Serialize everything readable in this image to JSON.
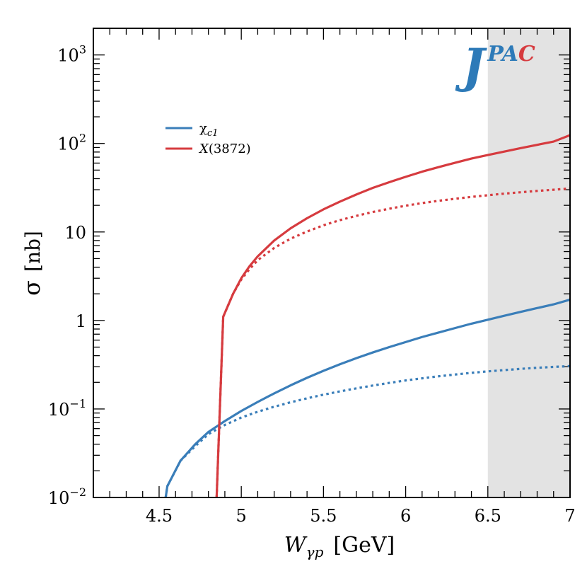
{
  "chart_data": {
    "type": "line",
    "x_scale": "linear",
    "y_scale": "log",
    "xlim": [
      4.1,
      7.0
    ],
    "ylim": [
      0.01,
      2000
    ],
    "x_ticks": [
      {
        "value": 4.5,
        "label": "4.5"
      },
      {
        "value": 5.0,
        "label": "5"
      },
      {
        "value": 5.5,
        "label": "5.5"
      },
      {
        "value": 6.0,
        "label": "6"
      },
      {
        "value": 6.5,
        "label": "6.5"
      },
      {
        "value": 7.0,
        "label": "7"
      }
    ],
    "y_ticks": [
      {
        "value": 0.01,
        "base": "10",
        "exp": "−2",
        "label": ""
      },
      {
        "value": 0.1,
        "base": "10",
        "exp": "−1",
        "label": ""
      },
      {
        "value": 1,
        "base": "",
        "exp": "",
        "label": "1"
      },
      {
        "value": 10,
        "base": "",
        "exp": "",
        "label": "10"
      },
      {
        "value": 100,
        "base": "10",
        "exp": "2",
        "label": ""
      },
      {
        "value": 1000,
        "base": "10",
        "exp": "3",
        "label": ""
      }
    ],
    "xlabel": {
      "symbol": "W",
      "subscript": "γp",
      "unit": "[GeV]"
    },
    "ylabel": {
      "symbol": "σ",
      "unit": "[nb]"
    },
    "shaded_region": {
      "x_from": 6.5,
      "x_to": 7.0,
      "color": "#e3e3e3"
    },
    "series": [
      {
        "name": "χc1",
        "legend_main": "χ",
        "legend_sub": "c1",
        "color": "#3a7eb9",
        "style": "solid",
        "x": [
          4.54,
          4.55,
          4.63,
          4.72,
          4.8,
          4.9,
          5.0,
          5.1,
          5.2,
          5.3,
          5.4,
          5.5,
          5.6,
          5.7,
          5.8,
          5.9,
          6.0,
          6.1,
          6.2,
          6.3,
          6.4,
          6.5,
          6.6,
          6.7,
          6.8,
          6.9,
          7.0
        ],
        "y": [
          0.01,
          0.0134,
          0.026,
          0.04,
          0.055,
          0.073,
          0.095,
          0.12,
          0.15,
          0.185,
          0.225,
          0.27,
          0.32,
          0.375,
          0.435,
          0.5,
          0.57,
          0.65,
          0.73,
          0.82,
          0.92,
          1.02,
          1.13,
          1.25,
          1.38,
          1.52,
          1.72
        ]
      },
      {
        "name": "χc1 (dotted)",
        "legend_main": "",
        "legend_sub": "",
        "color": "#3a7eb9",
        "style": "dotted",
        "x": [
          4.54,
          4.55,
          4.63,
          4.72,
          4.8,
          4.9,
          5.0,
          5.1,
          5.2,
          5.3,
          5.4,
          5.5,
          5.6,
          5.7,
          5.8,
          5.9,
          6.0,
          6.1,
          6.2,
          6.3,
          6.4,
          6.5,
          6.6,
          6.7,
          6.8,
          6.9,
          7.0
        ],
        "y": [
          0.01,
          0.0134,
          0.026,
          0.038,
          0.052,
          0.066,
          0.08,
          0.093,
          0.106,
          0.119,
          0.132,
          0.145,
          0.158,
          0.171,
          0.184,
          0.197,
          0.21,
          0.222,
          0.234,
          0.245,
          0.256,
          0.266,
          0.275,
          0.284,
          0.292,
          0.299,
          0.305
        ]
      },
      {
        "name": "X(3872)",
        "legend_main": "X",
        "legend_sub": "(3872)",
        "color": "#d63b3f",
        "style": "solid",
        "x": [
          4.85,
          4.89,
          4.95,
          5.0,
          5.05,
          5.1,
          5.2,
          5.3,
          5.4,
          5.5,
          5.6,
          5.7,
          5.8,
          5.9,
          6.0,
          6.1,
          6.2,
          6.3,
          6.4,
          6.5,
          6.6,
          6.7,
          6.8,
          6.9,
          7.0
        ],
        "y": [
          0.01,
          1.1,
          2.0,
          3.0,
          4.1,
          5.3,
          8.0,
          11.0,
          14.3,
          18.0,
          22.0,
          26.5,
          31.5,
          36.5,
          42.0,
          48.0,
          54.0,
          60.5,
          67.5,
          74.0,
          81.0,
          88.5,
          96.5,
          105.0,
          124.0
        ]
      },
      {
        "name": "X(3872) (dotted)",
        "legend_main": "",
        "legend_sub": "",
        "color": "#d63b3f",
        "style": "dotted",
        "x": [
          4.85,
          4.89,
          4.95,
          5.0,
          5.05,
          5.1,
          5.2,
          5.3,
          5.4,
          5.5,
          5.6,
          5.7,
          5.8,
          5.9,
          6.0,
          6.1,
          6.2,
          6.3,
          6.4,
          6.5,
          6.6,
          6.7,
          6.8,
          6.9,
          7.0
        ],
        "y": [
          0.01,
          1.1,
          2.0,
          2.9,
          3.8,
          4.8,
          6.6,
          8.4,
          10.1,
          11.9,
          13.6,
          15.2,
          16.8,
          18.3,
          19.8,
          21.2,
          22.5,
          23.7,
          24.9,
          26.0,
          27.1,
          28.1,
          29.1,
          30.0,
          31.0
        ]
      }
    ],
    "legend": {
      "placement": "upper-left"
    },
    "logo": {
      "big": "J",
      "small_1": "PA",
      "small_2": "C",
      "color_blue": "#2d7ab8",
      "color_red": "#d63b3f"
    }
  }
}
